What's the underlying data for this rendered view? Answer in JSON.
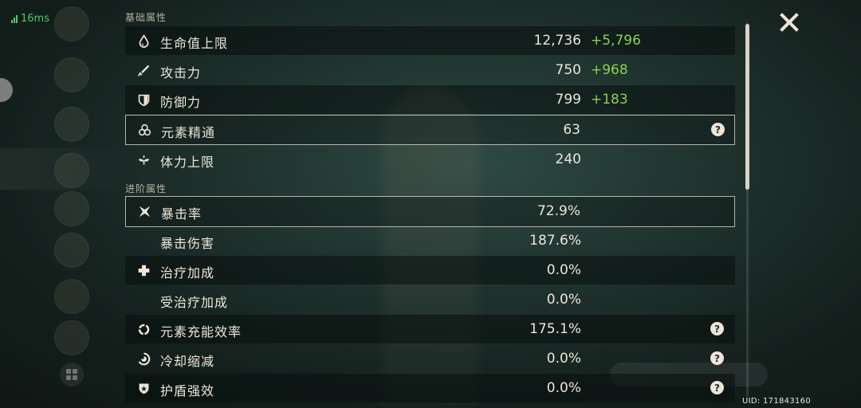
{
  "status": {
    "ping": "16ms"
  },
  "sections": {
    "base": "基础属性",
    "advanced": "进阶属性"
  },
  "base_stats": [
    {
      "icon": "hp-drop-icon",
      "name": "生命值上限",
      "value": "12,736",
      "bonus": "+5,796",
      "help": false
    },
    {
      "icon": "sword-icon",
      "name": "攻击力",
      "value": "750",
      "bonus": "+968",
      "help": false
    },
    {
      "icon": "shield-icon",
      "name": "防御力",
      "value": "799",
      "bonus": "+183",
      "help": false
    },
    {
      "icon": "elemental-mastery-icon",
      "name": "元素精通",
      "value": "63",
      "bonus": "",
      "help": true
    },
    {
      "icon": "stamina-icon",
      "name": "体力上限",
      "value": "240",
      "bonus": "",
      "help": false
    }
  ],
  "advanced_stats": [
    {
      "icon": "crit-rate-icon",
      "name": "暴击率",
      "value": "72.9%",
      "help": false
    },
    {
      "icon": "",
      "name": "暴击伤害",
      "value": "187.6%",
      "help": false
    },
    {
      "icon": "healing-cross-icon",
      "name": "治疗加成",
      "value": "0.0%",
      "help": false
    },
    {
      "icon": "",
      "name": "受治疗加成",
      "value": "0.0%",
      "help": false
    },
    {
      "icon": "energy-recharge-icon",
      "name": "元素充能效率",
      "value": "175.1%",
      "help": true
    },
    {
      "icon": "cooldown-icon",
      "name": "冷却缩减",
      "value": "0.0%",
      "help": true
    },
    {
      "icon": "shield-strength-icon",
      "name": "护盾强效",
      "value": "0.0%",
      "help": true
    }
  ],
  "help_glyph": "?",
  "footer": {
    "uid": "UID: 171843160"
  },
  "colors": {
    "bonus": "#87d34f",
    "text": "#ece5d8",
    "ping": "#4ccb6e"
  }
}
